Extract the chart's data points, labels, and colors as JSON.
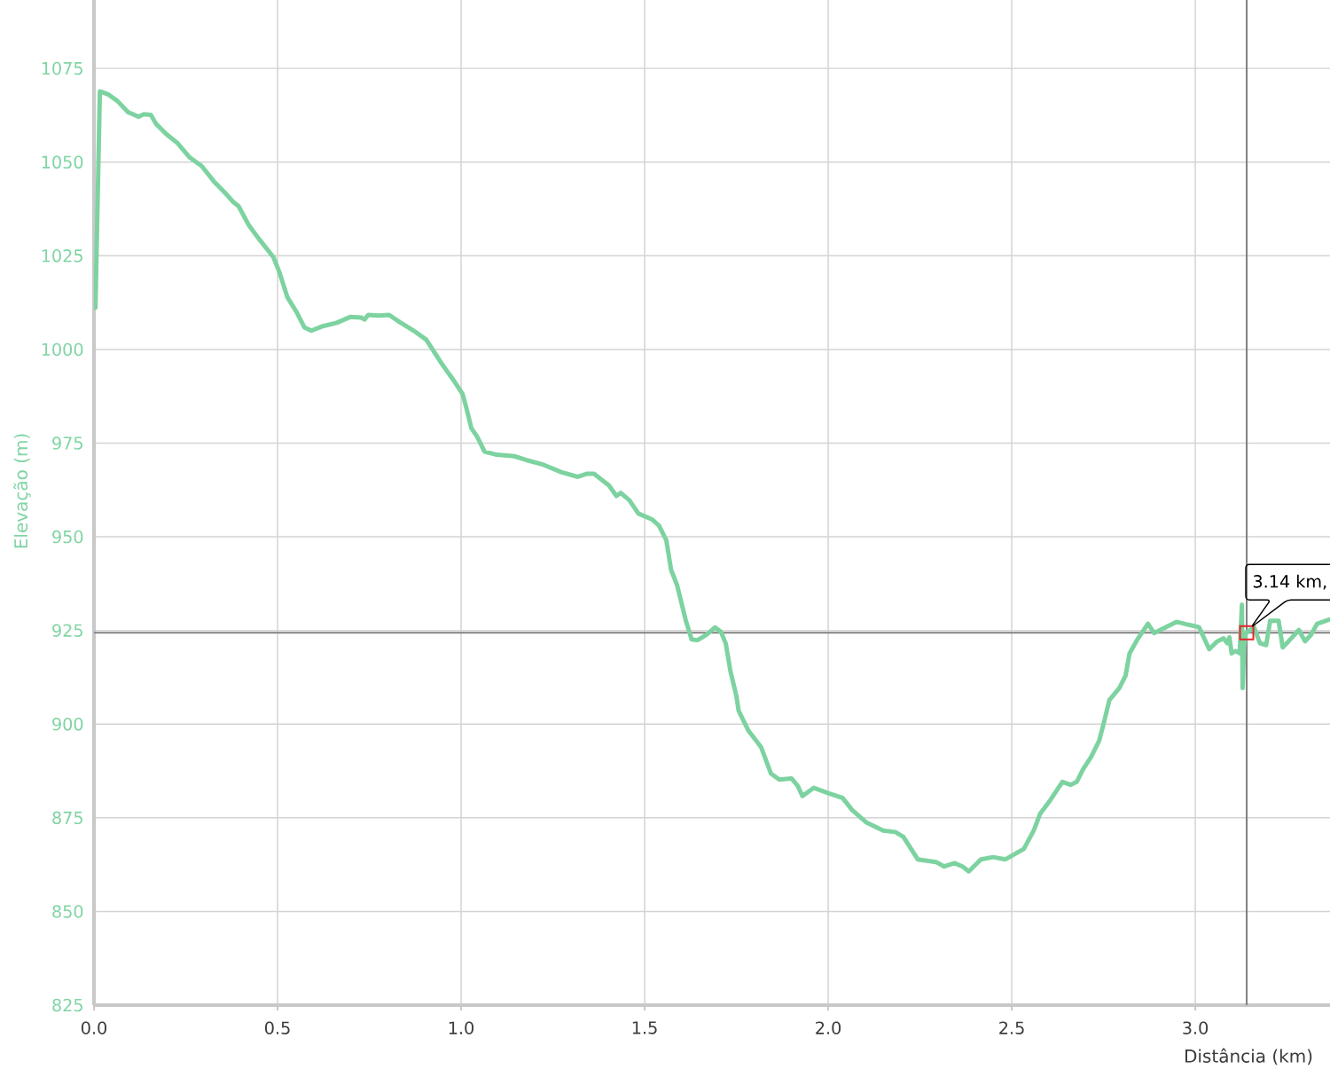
{
  "chart_data": {
    "type": "line",
    "xlabel": "Distância (km)",
    "ylabel": "Elevação (m)",
    "xlim": [
      0,
      3.367
    ],
    "ylim": [
      825,
      1093.5
    ],
    "xticks": [
      {
        "value": 0,
        "label": "0.0"
      },
      0.5,
      {
        "value": 1,
        "label": "1.0"
      },
      1.5,
      {
        "value": 2,
        "label": "2.0"
      },
      2.5,
      {
        "value": 3,
        "label": "3.0"
      }
    ],
    "yticks": [
      825,
      850,
      875,
      900,
      925,
      950,
      975,
      1000,
      1025,
      1050,
      1075
    ],
    "grid": true,
    "marker": "none",
    "line_style": "solid",
    "series": [
      {
        "color": "#7dd3a0",
        "x": [
          0.004,
          0.016,
          0.04,
          0.064,
          0.093,
          0.122,
          0.136,
          0.155,
          0.169,
          0.198,
          0.227,
          0.26,
          0.293,
          0.327,
          0.355,
          0.379,
          0.394,
          0.422,
          0.451,
          0.489,
          0.504,
          0.527,
          0.551,
          0.573,
          0.592,
          0.623,
          0.661,
          0.699,
          0.728,
          0.737,
          0.747,
          0.776,
          0.804,
          0.833,
          0.871,
          0.905,
          0.948,
          0.98,
          1.004,
          1.012,
          1.028,
          1.044,
          1.064,
          1.097,
          1.145,
          1.177,
          1.225,
          1.274,
          1.318,
          1.342,
          1.362,
          1.403,
          1.423,
          1.435,
          1.459,
          1.483,
          1.519,
          1.539,
          1.559,
          1.572,
          1.588,
          1.604,
          1.612,
          1.628,
          1.644,
          1.668,
          1.692,
          1.708,
          1.721,
          1.734,
          1.75,
          1.756,
          1.783,
          1.817,
          1.844,
          1.867,
          1.9,
          1.917,
          1.93,
          1.961,
          2.006,
          2.039,
          2.066,
          2.105,
          2.15,
          2.183,
          2.205,
          2.244,
          2.294,
          2.316,
          2.344,
          2.366,
          2.383,
          2.416,
          2.449,
          2.483,
          2.533,
          2.56,
          2.577,
          2.605,
          2.638,
          2.66,
          2.677,
          2.694,
          2.716,
          2.738,
          2.751,
          2.766,
          2.793,
          2.81,
          2.821,
          2.843,
          2.871,
          2.888,
          2.916,
          2.949,
          2.982,
          3.01,
          3.038,
          3.06,
          3.077,
          3.087,
          3.093,
          3.099,
          3.11,
          3.121,
          3.127,
          3.129,
          3.133,
          3.138,
          3.16,
          3.176,
          3.193,
          3.204,
          3.227,
          3.238,
          3.254,
          3.282,
          3.299,
          3.315,
          3.332,
          3.365
        ],
        "values": [
          1011.1,
          1068.9,
          1068.0,
          1066.3,
          1063.3,
          1062.1,
          1062.8,
          1062.6,
          1060.2,
          1057.4,
          1055.1,
          1051.3,
          1049.0,
          1044.8,
          1042.0,
          1039.4,
          1038.2,
          1033.1,
          1029.3,
          1024.6,
          1020.9,
          1013.9,
          1010.1,
          1005.9,
          1005.0,
          1006.2,
          1007.1,
          1008.7,
          1008.5,
          1008.0,
          1009.2,
          1009.0,
          1009.2,
          1007.3,
          1005.0,
          1002.6,
          996.1,
          991.7,
          988.1,
          985.3,
          979.0,
          976.7,
          972.7,
          971.9,
          971.5,
          970.5,
          969.2,
          967.2,
          966.0,
          966.8,
          966.8,
          963.7,
          960.9,
          961.7,
          959.7,
          956.2,
          954.7,
          953.0,
          949.1,
          941.2,
          937.2,
          930.9,
          927.7,
          922.6,
          922.4,
          923.8,
          925.8,
          924.6,
          921.5,
          914.0,
          907.5,
          903.6,
          898.2,
          893.9,
          886.8,
          885.2,
          885.5,
          883.5,
          880.8,
          883.0,
          881.4,
          880.3,
          877.0,
          873.7,
          871.6,
          871.2,
          869.9,
          863.9,
          863.2,
          862.0,
          862.9,
          862.0,
          860.7,
          863.9,
          864.5,
          863.9,
          866.7,
          871.6,
          876.0,
          879.7,
          884.6,
          883.8,
          884.6,
          887.9,
          891.2,
          895.5,
          900.4,
          906.4,
          909.6,
          912.9,
          918.9,
          922.7,
          926.8,
          924.3,
          925.7,
          927.3,
          926.5,
          925.9,
          920.0,
          922.1,
          922.9,
          921.6,
          923.2,
          918.9,
          919.5,
          918.9,
          931.9,
          909.6,
          921.0,
          924.3,
          925.9,
          921.6,
          921.1,
          927.6,
          927.6,
          920.5,
          922.1,
          925.1,
          922.1,
          923.8,
          926.8,
          927.9
        ]
      },
      {
        "type": "scatter",
        "marker": "square",
        "color": "#e3262b",
        "x": [
          3.14
        ],
        "values": [
          924.4
        ]
      }
    ],
    "ref_lines": [
      {
        "axis": "x",
        "value": 3.14,
        "color": "#808080"
      },
      {
        "axis": "y",
        "value": 924.4,
        "color": "#808080"
      }
    ],
    "annotations": [
      {
        "text": "3.14 km,",
        "x": 3.14,
        "y": 924.4
      }
    ]
  }
}
